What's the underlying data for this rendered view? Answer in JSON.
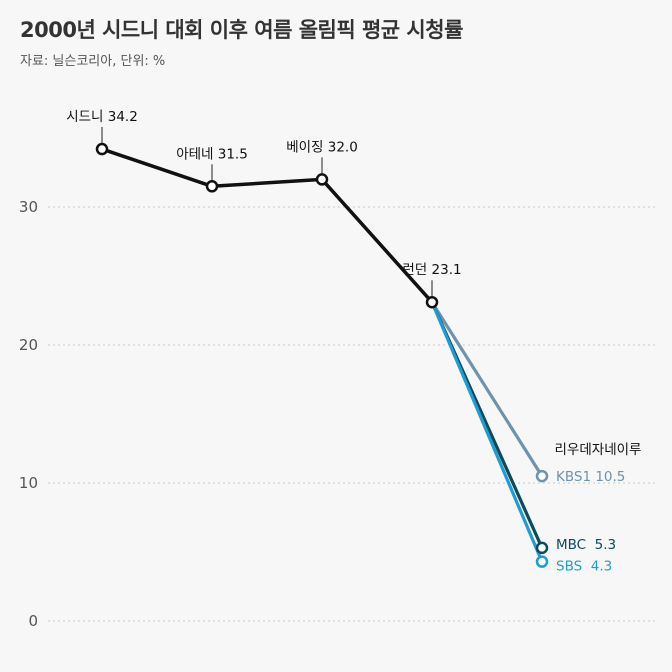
{
  "title": "2000년 시드니 대회 이후 여름 올림픽 평균 시청률",
  "subtitle": "자료: 닐슨코리아, 단위: %",
  "chart_data": {
    "type": "line",
    "ylim": [
      0,
      35
    ],
    "yticks": [
      0,
      10,
      20,
      30
    ],
    "grid": true,
    "common": {
      "name": "",
      "color": "#111111",
      "points": [
        {
          "label": "시드니",
          "value": 34.2,
          "text": "시드니 34.2"
        },
        {
          "label": "아테네",
          "value": 31.5,
          "text": "아테네 31.5"
        },
        {
          "label": "베이징",
          "value": 32.0,
          "text": "베이징 32.0"
        },
        {
          "label": "런던",
          "value": 23.1,
          "text": "런던 23.1"
        }
      ]
    },
    "branch_label": "리우데자네이루",
    "series": [
      {
        "name": "KBS1",
        "value": 10.5,
        "text": "KBS1 10.5",
        "color": "#6e93ab"
      },
      {
        "name": "MBC",
        "value": 5.3,
        "text": "MBC  5.3",
        "color": "#0e4a5e"
      },
      {
        "name": "SBS",
        "value": 4.3,
        "text": "SBS  4.3",
        "color": "#1e9ed0"
      }
    ]
  }
}
